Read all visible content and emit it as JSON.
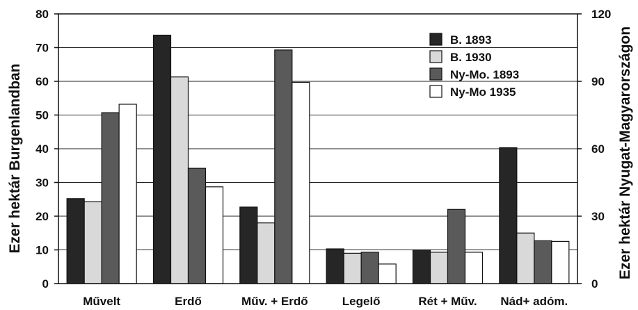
{
  "chart_data": {
    "type": "bar",
    "categories": [
      "Művelt",
      "Erdő",
      "Műv. + Erdő",
      "Legelő",
      "Rét + Műv.",
      "Nád+ adóm."
    ],
    "series": [
      {
        "name": "B. 1893",
        "values": [
          25.2,
          73.7,
          22.7,
          10.3,
          10.0,
          40.3
        ],
        "color": "#262626"
      },
      {
        "name": "B. 1930",
        "values": [
          24.3,
          61.3,
          18.0,
          9.0,
          9.3,
          15.0
        ],
        "color": "#d9d9d9"
      },
      {
        "name": "Ny-Mo. 1893",
        "values": [
          50.7,
          34.2,
          69.3,
          9.3,
          22.0,
          12.7
        ],
        "color": "#5a5a5a"
      },
      {
        "name": "Ny-Mo 1935",
        "values": [
          53.2,
          28.7,
          59.7,
          5.8,
          9.3,
          12.5
        ],
        "color": "#ffffff"
      }
    ],
    "ylabel": "Ezer hektár Burgenlandban",
    "ylabel_right": "Ezer hektár Nyugat-Magyarországon",
    "ylim": [
      0,
      80
    ],
    "yticks": [
      0,
      10,
      20,
      30,
      40,
      50,
      60,
      70,
      80
    ],
    "ylim_right": [
      0,
      120
    ],
    "yticks_right": [
      0,
      30,
      60,
      90,
      120
    ],
    "grid": true,
    "legend_position": "top-right"
  }
}
